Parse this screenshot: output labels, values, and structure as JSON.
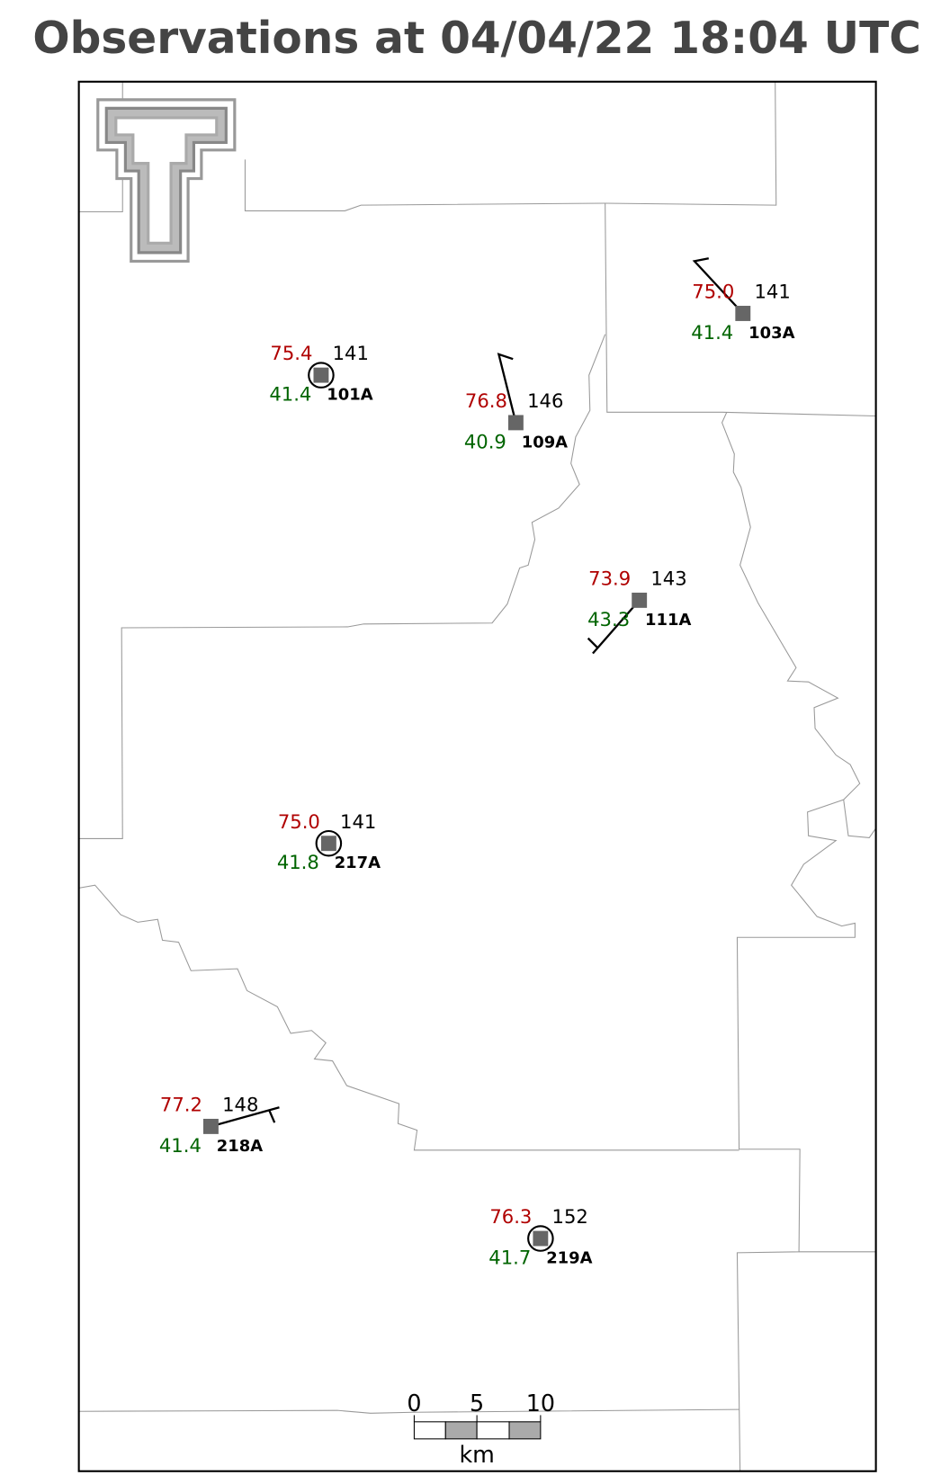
{
  "title": "Observations at 04/04/22 18:04 UTC",
  "stations": [
    {
      "id": "101A",
      "temperature": "75.4",
      "dewpoint": "41.4",
      "pressure": "141"
    },
    {
      "id": "109A",
      "temperature": "76.8",
      "dewpoint": "40.9",
      "pressure": "146"
    },
    {
      "id": "103A",
      "temperature": "75.0",
      "dewpoint": "41.4",
      "pressure": "141"
    },
    {
      "id": "111A",
      "temperature": "73.9",
      "dewpoint": "43.3",
      "pressure": "143"
    },
    {
      "id": "217A",
      "temperature": "75.0",
      "dewpoint": "41.8",
      "pressure": "141"
    },
    {
      "id": "218A",
      "temperature": "77.2",
      "dewpoint": "41.4",
      "pressure": "148"
    },
    {
      "id": "219A",
      "temperature": "76.3",
      "dewpoint": "41.7",
      "pressure": "152"
    }
  ],
  "scale_bar": {
    "labels": [
      "0",
      "5",
      "10"
    ],
    "unit": "km"
  }
}
